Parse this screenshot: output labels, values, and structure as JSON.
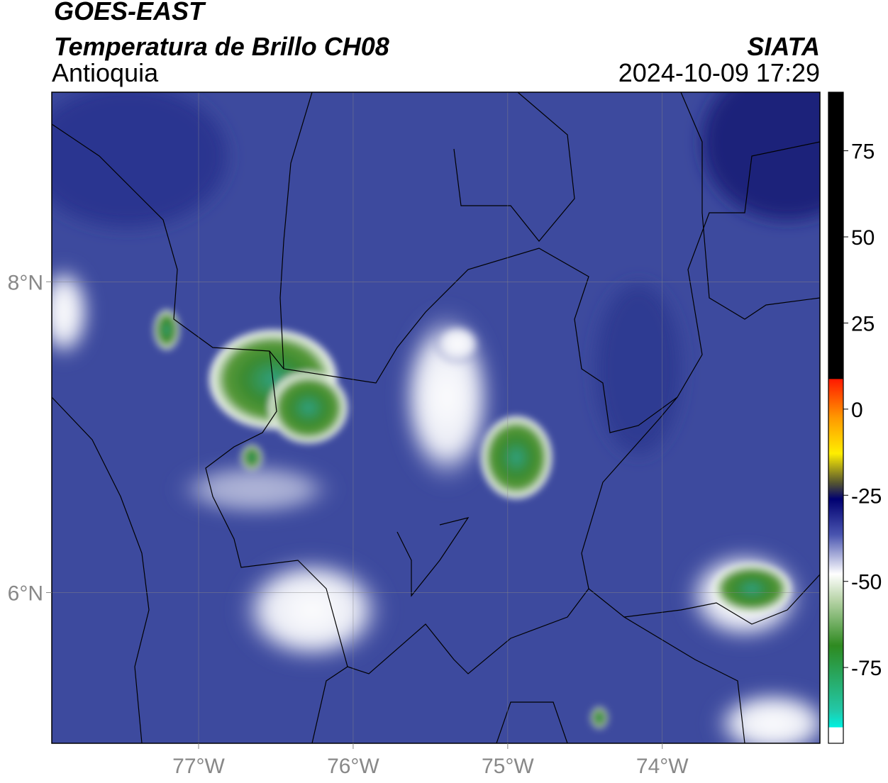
{
  "header": {
    "title": "GOES-EAST",
    "subtitle": "Temperatura de Brillo CH08",
    "region": "Antioquia",
    "source": "SIATA",
    "datetime": "2024-10-09 17:29"
  },
  "map": {
    "xlim": [
      -77.95,
      -72.98
    ],
    "ylim": [
      5.03,
      9.22
    ],
    "xticks": [
      {
        "value": -77,
        "label": "77°W"
      },
      {
        "value": -76,
        "label": "76°W"
      },
      {
        "value": -75,
        "label": "75°W"
      },
      {
        "value": -74,
        "label": "74°W"
      }
    ],
    "yticks": [
      {
        "value": 8,
        "label": "8°N"
      },
      {
        "value": 6,
        "label": "6°N"
      }
    ],
    "grid": true
  },
  "colorbar": {
    "lim": [
      -97,
      92
    ],
    "ticks": [
      75,
      50,
      25,
      0,
      -25,
      -50,
      -75
    ]
  }
}
